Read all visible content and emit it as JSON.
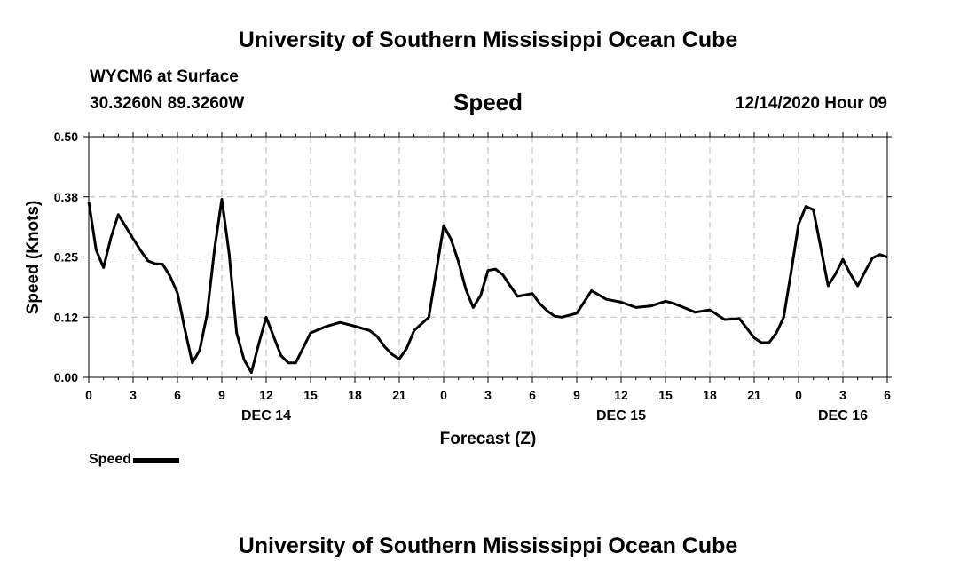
{
  "header": {
    "title": "University of Southern Mississippi Ocean Cube",
    "station": "WYCM6 at Surface",
    "coords": "30.3260N 89.3260W",
    "variable": "Speed",
    "datetime": "12/14/2020 Hour 09"
  },
  "footer": {
    "title": "University of Southern Mississippi Ocean Cube"
  },
  "legend": {
    "label": "Speed"
  },
  "chart_data": {
    "type": "line",
    "title": "Speed",
    "xlabel": "Forecast (Z)",
    "ylabel": "Speed (Knots)",
    "xlim": [
      0,
      54
    ],
    "ylim": [
      0,
      0.5
    ],
    "yticks": [
      0,
      0.125,
      0.25,
      0.375,
      0.5
    ],
    "ytick_labels": [
      "0.00",
      "0.12",
      "0.25",
      "0.38",
      "0.50"
    ],
    "xticks": [
      0,
      3,
      6,
      9,
      12,
      15,
      18,
      21,
      24,
      27,
      30,
      33,
      36,
      39,
      42,
      45,
      48,
      51,
      54
    ],
    "xtick_labels": [
      "0",
      "3",
      "6",
      "9",
      "12",
      "15",
      "18",
      "21",
      "0",
      "3",
      "6",
      "9",
      "12",
      "15",
      "18",
      "21",
      "0",
      "3",
      "6"
    ],
    "date_labels": [
      {
        "x": 12,
        "label": "DEC 14"
      },
      {
        "x": 36,
        "label": "DEC 15"
      },
      {
        "x": 51,
        "label": "DEC 16"
      }
    ],
    "grid": true,
    "legend_position": "bottom-left",
    "colors": {
      "line": "#000000",
      "grid": "#bbbbbb"
    },
    "series": [
      {
        "name": "Speed",
        "x": [
          0,
          0.5,
          1,
          1.5,
          2,
          2.5,
          3,
          3.5,
          4,
          4.5,
          5,
          5.5,
          6,
          6.5,
          7,
          7.5,
          8,
          8.5,
          9,
          9.5,
          10,
          10.5,
          11,
          11.5,
          12,
          12.5,
          13,
          13.5,
          14,
          15,
          16,
          17,
          18,
          19,
          19.5,
          20,
          20.5,
          21,
          21.5,
          22,
          23,
          23.5,
          24,
          24.5,
          25,
          25.5,
          26,
          26.5,
          27,
          27.5,
          28,
          28.5,
          29,
          30,
          30.5,
          31,
          31.5,
          32,
          33,
          34,
          35,
          36,
          37,
          38,
          39,
          39.5,
          40,
          41,
          42,
          43,
          44,
          45,
          45.5,
          46,
          46.5,
          47,
          47.5,
          48,
          48.5,
          49,
          49.5,
          50,
          50.5,
          51,
          51.5,
          52,
          52.5,
          53,
          53.5,
          54
        ],
        "values": [
          0.365,
          0.265,
          0.228,
          0.29,
          0.338,
          0.313,
          0.288,
          0.264,
          0.242,
          0.236,
          0.235,
          0.21,
          0.175,
          0.1,
          0.03,
          0.056,
          0.13,
          0.265,
          0.37,
          0.256,
          0.092,
          0.037,
          0.01,
          0.07,
          0.125,
          0.085,
          0.045,
          0.03,
          0.03,
          0.092,
          0.105,
          0.114,
          0.106,
          0.097,
          0.085,
          0.064,
          0.048,
          0.038,
          0.06,
          0.097,
          0.125,
          0.22,
          0.315,
          0.287,
          0.24,
          0.183,
          0.145,
          0.17,
          0.222,
          0.225,
          0.213,
          0.19,
          0.168,
          0.174,
          0.153,
          0.138,
          0.127,
          0.125,
          0.133,
          0.18,
          0.162,
          0.156,
          0.145,
          0.148,
          0.158,
          0.154,
          0.148,
          0.135,
          0.14,
          0.12,
          0.122,
          0.082,
          0.072,
          0.072,
          0.092,
          0.125,
          0.22,
          0.318,
          0.355,
          0.348,
          0.27,
          0.19,
          0.215,
          0.245,
          0.215,
          0.19,
          0.22,
          0.248,
          0.255,
          0.25
        ]
      }
    ]
  }
}
